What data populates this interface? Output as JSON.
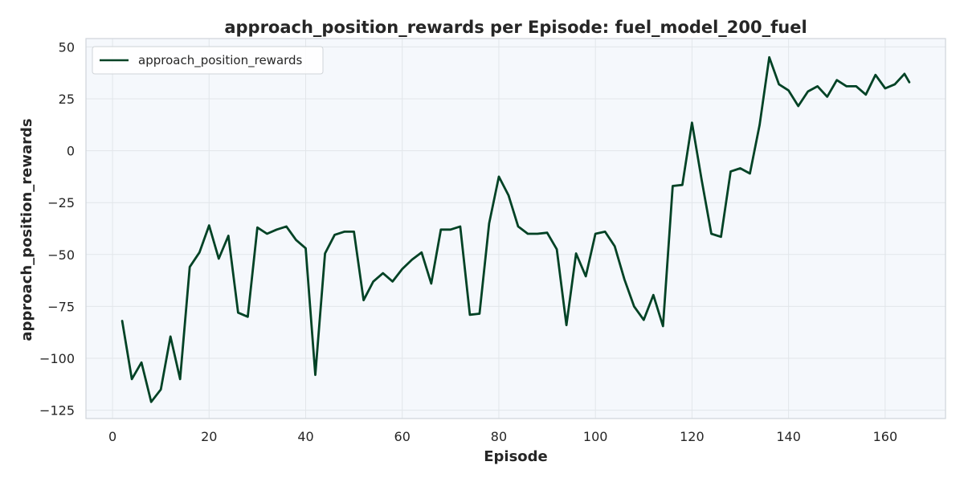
{
  "chart_data": {
    "type": "line",
    "title": "approach_position_rewards per Episode: fuel_model_200_fuel",
    "xlabel": "Episode",
    "ylabel": "approach_position_rewards",
    "xlim": [
      -5.5,
      172.5
    ],
    "ylim": [
      -129,
      54
    ],
    "x_ticks": [
      0,
      20,
      40,
      60,
      80,
      100,
      120,
      140,
      160
    ],
    "y_ticks": [
      -125,
      -100,
      -75,
      -50,
      -25,
      0,
      25,
      50
    ],
    "x_tick_labels": [
      "0",
      "20",
      "40",
      "60",
      "80",
      "100",
      "120",
      "140",
      "160"
    ],
    "y_tick_labels": [
      "−125",
      "−100",
      "−75",
      "−50",
      "−25",
      "0",
      "25",
      "50"
    ],
    "grid": true,
    "legend": {
      "position": "top-left"
    },
    "colors": {
      "line": "#004225",
      "plot_bg": "#f5f8fc",
      "grid": "#e2e6ea",
      "frame": "#cfd4da"
    },
    "series": [
      {
        "name": "approach_position_rewards",
        "x": [
          2,
          4,
          6,
          8,
          10,
          12,
          14,
          16,
          18,
          20,
          22,
          24,
          26,
          28,
          30,
          32,
          34,
          36,
          38,
          40,
          42,
          44,
          46,
          48,
          50,
          52,
          54,
          56,
          58,
          60,
          62,
          64,
          66,
          68,
          70,
          72,
          74,
          76,
          78,
          80,
          82,
          84,
          86,
          88,
          90,
          92,
          94,
          96,
          98,
          100,
          102,
          104,
          106,
          108,
          110,
          112,
          114,
          116,
          118,
          120,
          122,
          124,
          126,
          128,
          130,
          132,
          134,
          136,
          138,
          140,
          142,
          144,
          146,
          148,
          150,
          152,
          154,
          156,
          158,
          160,
          162,
          164,
          165
        ],
        "values": [
          -82,
          -110,
          -102,
          -121,
          -115,
          -89.5,
          -110,
          -56,
          -49,
          -36,
          -52,
          -41,
          -78,
          -80,
          -37,
          -40,
          -38,
          -36.5,
          -43,
          -47,
          -108,
          -49.5,
          -40.5,
          -39,
          -39,
          -72,
          -63,
          -59,
          -63,
          -57,
          -52.5,
          -49,
          -64,
          -38,
          -38,
          -36.5,
          -79,
          -78.5,
          -35,
          -12.5,
          -21.5,
          -36.5,
          -40,
          -40,
          -39.5,
          -47.5,
          -84,
          -49.5,
          -60.5,
          -40,
          -39,
          -46,
          -62,
          -75,
          -81.5,
          -69.5,
          -84.5,
          -17,
          -16.5,
          13.5,
          -14,
          -40,
          -41.5,
          -10,
          -8.5,
          -11,
          12.5,
          45,
          32,
          29,
          21.5,
          28.5,
          31,
          26,
          34,
          31,
          31,
          27,
          36.5,
          30,
          32,
          37,
          33
        ]
      }
    ]
  }
}
